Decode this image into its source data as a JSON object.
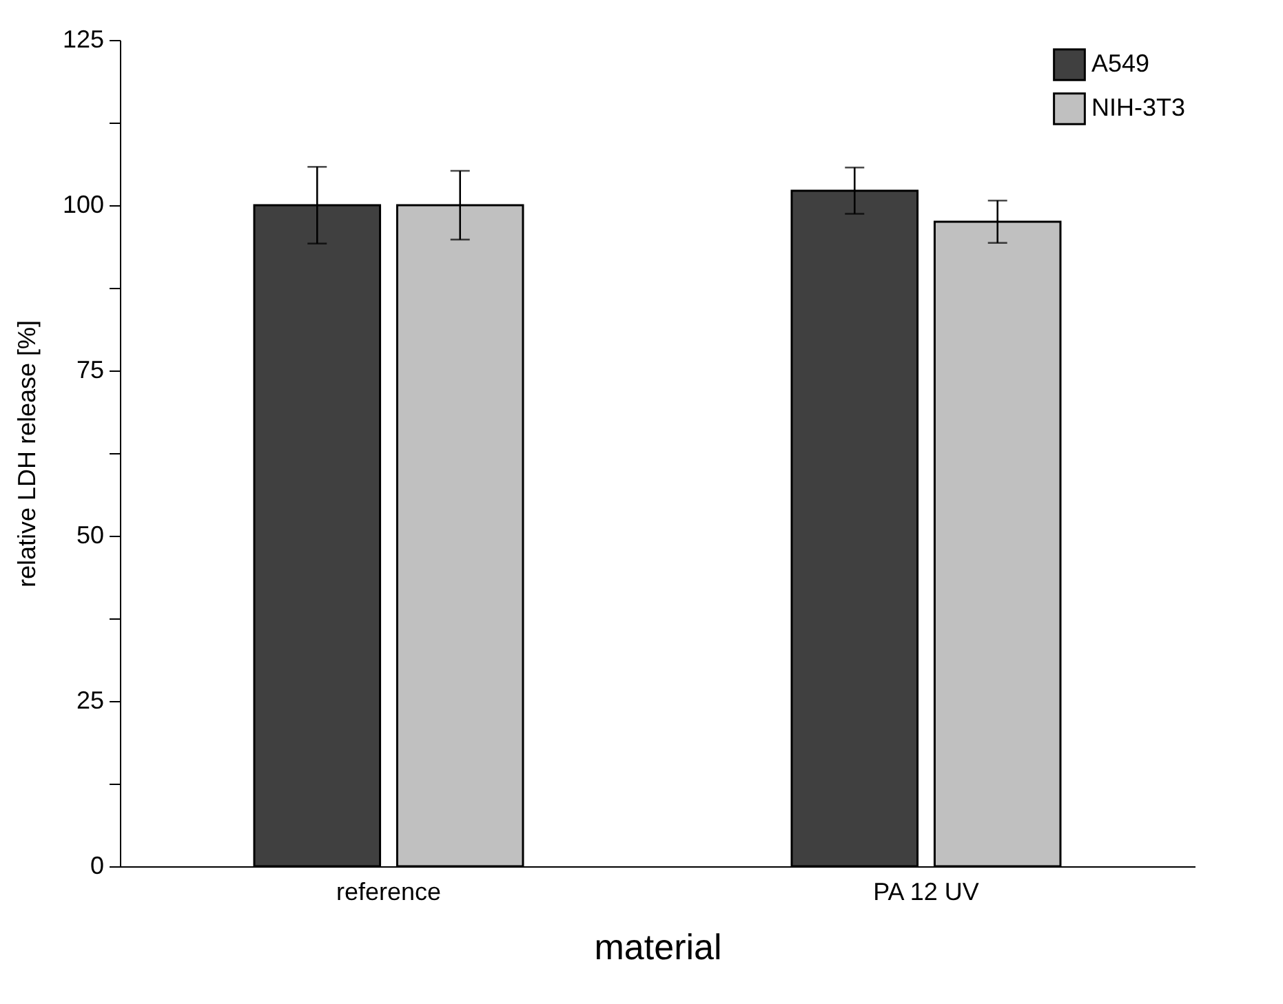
{
  "chart_data": {
    "type": "bar",
    "xlabel": "material",
    "ylabel": "relative LDH release [%]",
    "categories": [
      "reference",
      "PA 12 UV"
    ],
    "series": [
      {
        "name": "A549",
        "color": "#404040",
        "values": [
          100,
          102.2
        ],
        "errors": [
          5.8,
          3.5
        ]
      },
      {
        "name": "NIH-3T3",
        "color": "#c0c0c0",
        "values": [
          100,
          97.5
        ],
        "errors": [
          5.2,
          3.2
        ]
      }
    ],
    "ylim": [
      0,
      125
    ],
    "yticks": [
      0,
      {
        "value": 12.5,
        "label": null
      },
      25,
      {
        "value": 37.5,
        "label": null
      },
      50,
      {
        "value": 62.5,
        "label": null
      },
      75,
      {
        "value": 87.5,
        "label": null
      },
      100,
      {
        "value": 112.5,
        "label": null
      },
      125
    ],
    "grid": false,
    "legend": "top right"
  }
}
